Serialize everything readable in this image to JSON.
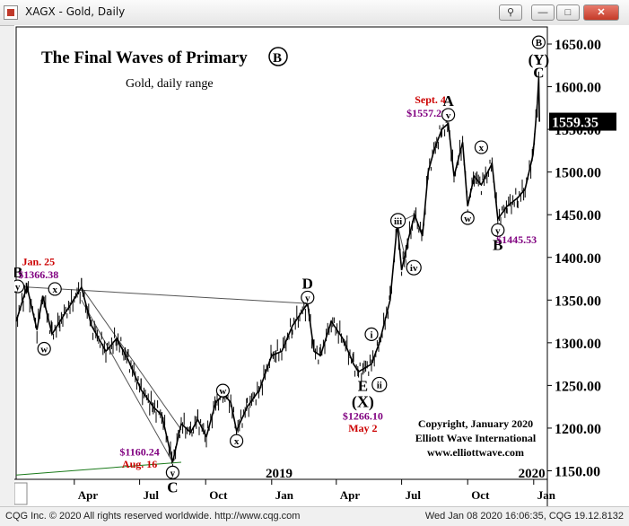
{
  "window": {
    "title": "XAGX - Gold, Daily",
    "buttons": {
      "minimize": "—",
      "maximize": "□",
      "close": "✕",
      "link": "⚲"
    }
  },
  "status": {
    "left": "CQG Inc. © 2020 All rights reserved worldwide. http://www.cqg.com",
    "right": "Wed Jan 08 2020 16:06:35, CQG 19.12.8132"
  },
  "colors": {
    "price": "#000000",
    "date_label": "#cc0000",
    "price_label": "#800080",
    "trendline": "#1a7a1a",
    "channel": "#555555"
  },
  "chart_data": {
    "type": "line",
    "title": "The Final Waves of Primary",
    "title_circle": "B",
    "subtitle": "Gold, daily range",
    "ylim": [
      1140,
      1670
    ],
    "yticks": [
      1150,
      1200,
      1250,
      1300,
      1350,
      1400,
      1450,
      1500,
      1550,
      1600,
      1650
    ],
    "ytick_labels": [
      "1150.00",
      "1200.00",
      "1250.00",
      "1300.00",
      "1350.00",
      "1400.00",
      "1450.00",
      "1500.00",
      "1550.00",
      "1600.00",
      "1650.00"
    ],
    "last_price": "1559.35",
    "xlim": [
      "2018-01-10",
      "2020-01-20"
    ],
    "xticks": [
      {
        "date": "2018-04-01",
        "label": "Apr"
      },
      {
        "date": "2018-07-01",
        "label": "Jul"
      },
      {
        "date": "2018-10-01",
        "label": "Oct"
      },
      {
        "date": "2019-01-01",
        "label": "Jan"
      },
      {
        "date": "2019-04-01",
        "label": "Apr"
      },
      {
        "date": "2019-07-01",
        "label": "Jul"
      },
      {
        "date": "2019-10-01",
        "label": "Oct"
      },
      {
        "date": "2020-01-01",
        "label": "Jan"
      }
    ],
    "year_labels": [
      {
        "date": "2019-01-15",
        "label": "2019"
      },
      {
        "date": "2020-01-02",
        "label": "2020"
      }
    ],
    "series": [
      {
        "points": [
          {
            "x": "2018-01-10",
            "y": 1325
          },
          {
            "x": "2018-01-25",
            "y": 1366
          },
          {
            "x": "2018-02-08",
            "y": 1315
          },
          {
            "x": "2018-02-16",
            "y": 1355
          },
          {
            "x": "2018-03-01",
            "y": 1310
          },
          {
            "x": "2018-03-12",
            "y": 1325
          },
          {
            "x": "2018-04-11",
            "y": 1365
          },
          {
            "x": "2018-04-25",
            "y": 1320
          },
          {
            "x": "2018-05-15",
            "y": 1290
          },
          {
            "x": "2018-05-30",
            "y": 1305
          },
          {
            "x": "2018-06-15",
            "y": 1280
          },
          {
            "x": "2018-07-03",
            "y": 1245
          },
          {
            "x": "2018-07-20",
            "y": 1225
          },
          {
            "x": "2018-08-01",
            "y": 1215
          },
          {
            "x": "2018-08-16",
            "y": 1160
          },
          {
            "x": "2018-08-28",
            "y": 1205
          },
          {
            "x": "2018-09-10",
            "y": 1195
          },
          {
            "x": "2018-09-20",
            "y": 1210
          },
          {
            "x": "2018-10-02",
            "y": 1190
          },
          {
            "x": "2018-10-15",
            "y": 1230
          },
          {
            "x": "2018-10-26",
            "y": 1240
          },
          {
            "x": "2018-11-05",
            "y": 1230
          },
          {
            "x": "2018-11-13",
            "y": 1197
          },
          {
            "x": "2018-11-28",
            "y": 1225
          },
          {
            "x": "2018-12-15",
            "y": 1245
          },
          {
            "x": "2019-01-01",
            "y": 1285
          },
          {
            "x": "2019-01-15",
            "y": 1290
          },
          {
            "x": "2019-01-30",
            "y": 1320
          },
          {
            "x": "2019-02-20",
            "y": 1346
          },
          {
            "x": "2019-03-01",
            "y": 1290
          },
          {
            "x": "2019-03-10",
            "y": 1285
          },
          {
            "x": "2019-03-25",
            "y": 1325
          },
          {
            "x": "2019-04-10",
            "y": 1305
          },
          {
            "x": "2019-04-25",
            "y": 1275
          },
          {
            "x": "2019-05-02",
            "y": 1266
          },
          {
            "x": "2019-05-20",
            "y": 1275
          },
          {
            "x": "2019-05-31",
            "y": 1300
          },
          {
            "x": "2019-06-15",
            "y": 1350
          },
          {
            "x": "2019-06-25",
            "y": 1440
          },
          {
            "x": "2019-07-01",
            "y": 1385
          },
          {
            "x": "2019-07-10",
            "y": 1420
          },
          {
            "x": "2019-07-19",
            "y": 1450
          },
          {
            "x": "2019-07-30",
            "y": 1425
          },
          {
            "x": "2019-08-07",
            "y": 1500
          },
          {
            "x": "2019-08-15",
            "y": 1525
          },
          {
            "x": "2019-08-26",
            "y": 1550
          },
          {
            "x": "2019-09-04",
            "y": 1557
          },
          {
            "x": "2019-09-12",
            "y": 1495
          },
          {
            "x": "2019-09-24",
            "y": 1535
          },
          {
            "x": "2019-10-01",
            "y": 1460
          },
          {
            "x": "2019-10-10",
            "y": 1495
          },
          {
            "x": "2019-10-20",
            "y": 1485
          },
          {
            "x": "2019-11-04",
            "y": 1510
          },
          {
            "x": "2019-11-12",
            "y": 1445
          },
          {
            "x": "2019-11-25",
            "y": 1460
          },
          {
            "x": "2019-12-10",
            "y": 1470
          },
          {
            "x": "2019-12-20",
            "y": 1480
          },
          {
            "x": "2019-12-31",
            "y": 1520
          },
          {
            "x": "2020-01-06",
            "y": 1580
          },
          {
            "x": "2020-01-08",
            "y": 1610
          },
          {
            "x": "2020-01-09",
            "y": 1559
          }
        ]
      }
    ],
    "lines": [
      {
        "x1": "2018-01-10",
        "y1": 1366,
        "x2": "2019-02-20",
        "y2": 1346
      },
      {
        "x1": "2018-04-11",
        "y1": 1365,
        "x2": "2018-08-28",
        "y2": 1198
      },
      {
        "x1": "2018-04-11",
        "y1": 1350,
        "x2": "2018-08-16",
        "y2": 1160
      },
      {
        "x1": "2019-06-25",
        "y1": 1440,
        "x2": "2019-07-10",
        "y2": 1385
      },
      {
        "x1": "2019-06-25",
        "y1": 1440,
        "x2": "2019-07-19",
        "y2": 1450
      }
    ],
    "support_line": {
      "x1": "2018-01-10",
      "y1": 1145,
      "x2": "2018-08-28",
      "y2": 1160
    },
    "annotations": [
      {
        "text": "B",
        "x": "2018-01-12",
        "y": 1383,
        "kind": "big"
      },
      {
        "text": "y",
        "x": "2018-01-12",
        "y": 1366,
        "kind": "circle"
      },
      {
        "text": "Jan. 25",
        "x": "2018-02-10",
        "y": 1396,
        "kind": "date"
      },
      {
        "text": "$1366.38",
        "x": "2018-02-10",
        "y": 1381,
        "kind": "price"
      },
      {
        "text": "x",
        "x": "2018-03-05",
        "y": 1363,
        "kind": "circle"
      },
      {
        "text": "w",
        "x": "2018-02-18",
        "y": 1293,
        "kind": "circle"
      },
      {
        "text": "$1160.24",
        "x": "2018-07-01",
        "y": 1173,
        "kind": "price"
      },
      {
        "text": "Aug. 16",
        "x": "2018-07-01",
        "y": 1159,
        "kind": "date"
      },
      {
        "text": "y",
        "x": "2018-08-16",
        "y": 1148,
        "kind": "circle"
      },
      {
        "text": "C",
        "x": "2018-08-16",
        "y": 1131,
        "kind": "big"
      },
      {
        "text": "w",
        "x": "2018-10-25",
        "y": 1244,
        "kind": "circle"
      },
      {
        "text": "x",
        "x": "2018-11-13",
        "y": 1185,
        "kind": "circle"
      },
      {
        "text": "D",
        "x": "2019-02-20",
        "y": 1370,
        "kind": "big"
      },
      {
        "text": "y",
        "x": "2019-02-20",
        "y": 1353,
        "kind": "circle"
      },
      {
        "text": "i",
        "x": "2019-05-20",
        "y": 1310,
        "kind": "circle"
      },
      {
        "text": "E",
        "x": "2019-05-08",
        "y": 1250,
        "kind": "big"
      },
      {
        "text": "ii",
        "x": "2019-05-31",
        "y": 1251,
        "kind": "circle"
      },
      {
        "text": "X",
        "x": "2019-05-08",
        "y": 1231,
        "kind": "circle-big"
      },
      {
        "text": "$1266.10",
        "x": "2019-05-08",
        "y": 1215,
        "kind": "price"
      },
      {
        "text": "May 2",
        "x": "2019-05-08",
        "y": 1201,
        "kind": "date"
      },
      {
        "text": "iii",
        "x": "2019-06-26",
        "y": 1443,
        "kind": "circle"
      },
      {
        "text": "iv",
        "x": "2019-07-18",
        "y": 1388,
        "kind": "circle"
      },
      {
        "text": "Sept. 4",
        "x": "2019-08-10",
        "y": 1586,
        "kind": "date"
      },
      {
        "text": "A",
        "x": "2019-09-04",
        "y": 1584,
        "kind": "big"
      },
      {
        "text": "$1557.29",
        "x": "2019-08-05",
        "y": 1570,
        "kind": "price"
      },
      {
        "text": "v",
        "x": "2019-09-04",
        "y": 1567,
        "kind": "circle"
      },
      {
        "text": "x",
        "x": "2019-10-20",
        "y": 1529,
        "kind": "circle"
      },
      {
        "text": "w",
        "x": "2019-10-01",
        "y": 1446,
        "kind": "circle"
      },
      {
        "text": "y",
        "x": "2019-11-12",
        "y": 1432,
        "kind": "circle"
      },
      {
        "text": "B",
        "x": "2019-11-12",
        "y": 1415,
        "kind": "big"
      },
      {
        "text": "$1445.53",
        "x": "2019-12-08",
        "y": 1422,
        "kind": "price"
      },
      {
        "text": "B",
        "x": "2020-01-08",
        "y": 1652,
        "kind": "circle"
      },
      {
        "text": "(Y)",
        "x": "2020-01-08",
        "y": 1632,
        "kind": "big"
      },
      {
        "text": "C",
        "x": "2020-01-08",
        "y": 1617,
        "kind": "big"
      }
    ],
    "copyright": [
      "Copyright, January 2020",
      "Elliott Wave International",
      "www.elliottwave.com"
    ]
  }
}
